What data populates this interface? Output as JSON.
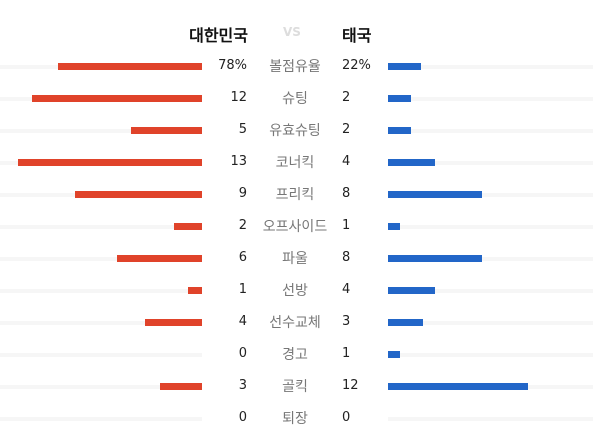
{
  "header": {
    "home_team": "대한민국",
    "vs": "VS",
    "away_team": "태국"
  },
  "colors": {
    "home_bar": "#e0432a",
    "away_bar": "#2266c8",
    "label_text": "#777777"
  },
  "stats": [
    {
      "label": "볼점유율",
      "home": "78%",
      "away": "22%",
      "home_value": 78,
      "away_value": 22,
      "scale": 100
    },
    {
      "label": "슈팅",
      "home": "12",
      "away": "2",
      "home_value": 12,
      "away_value": 2,
      "scale": 13
    },
    {
      "label": "유효슈팅",
      "home": "5",
      "away": "2",
      "home_value": 5,
      "away_value": 2,
      "scale": 13
    },
    {
      "label": "코너킥",
      "home": "13",
      "away": "4",
      "home_value": 13,
      "away_value": 4,
      "scale": 13
    },
    {
      "label": "프리킥",
      "home": "9",
      "away": "8",
      "home_value": 9,
      "away_value": 8,
      "scale": 13
    },
    {
      "label": "오프사이드",
      "home": "2",
      "away": "1",
      "home_value": 2,
      "away_value": 1,
      "scale": 13
    },
    {
      "label": "파울",
      "home": "6",
      "away": "8",
      "home_value": 6,
      "away_value": 8,
      "scale": 13
    },
    {
      "label": "선방",
      "home": "1",
      "away": "4",
      "home_value": 1,
      "away_value": 4,
      "scale": 13
    },
    {
      "label": "선수교체",
      "home": "4",
      "away": "3",
      "home_value": 4,
      "away_value": 3,
      "scale": 13
    },
    {
      "label": "경고",
      "home": "0",
      "away": "1",
      "home_value": 0,
      "away_value": 1,
      "scale": 13
    },
    {
      "label": "골킥",
      "home": "3",
      "away": "12",
      "home_value": 3,
      "away_value": 12,
      "scale": 13
    },
    {
      "label": "퇴장",
      "home": "0",
      "away": "0",
      "home_value": 0,
      "away_value": 0,
      "scale": 13
    }
  ]
}
